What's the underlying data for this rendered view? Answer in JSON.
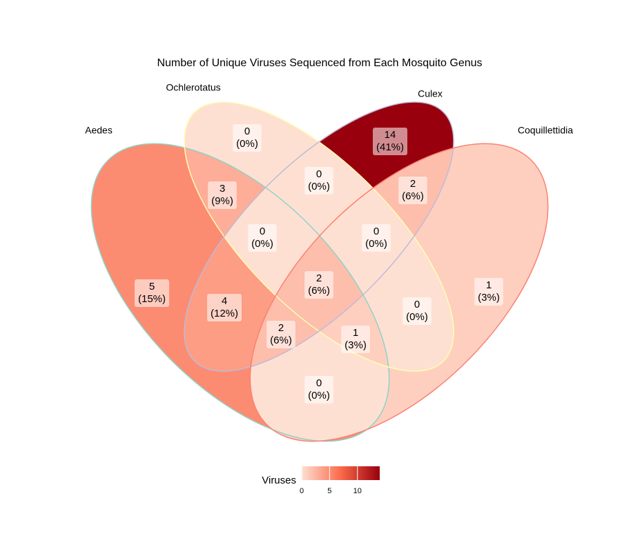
{
  "chart_data": {
    "type": "venn",
    "title": "Number of Unique Viruses Sequenced from Each Mosquito Genus",
    "sets": [
      {
        "name": "Aedes",
        "color": "#8dd3c7"
      },
      {
        "name": "Ochlerotatus",
        "color": "#ffffb3"
      },
      {
        "name": "Culex",
        "color": "#bebada"
      },
      {
        "name": "Coquillettidia",
        "color": "#fb8072"
      }
    ],
    "regions": [
      {
        "sets": [
          "Aedes"
        ],
        "value": 5,
        "percent": {
          "value": 15,
          "label": "(15%)"
        }
      },
      {
        "sets": [
          "Ochlerotatus"
        ],
        "value": 0,
        "percent": {
          "value": 0,
          "label": "(0%)"
        }
      },
      {
        "sets": [
          "Culex"
        ],
        "value": 14,
        "percent": {
          "value": 41,
          "label": "(41%)"
        }
      },
      {
        "sets": [
          "Coquillettidia"
        ],
        "value": 1,
        "percent": {
          "value": 3,
          "label": "(3%)"
        }
      },
      {
        "sets": [
          "Aedes",
          "Ochlerotatus"
        ],
        "value": 3,
        "percent": {
          "value": 9,
          "label": "(9%)"
        }
      },
      {
        "sets": [
          "Ochlerotatus",
          "Culex"
        ],
        "value": 0,
        "percent": {
          "value": 0,
          "label": "(0%)"
        }
      },
      {
        "sets": [
          "Culex",
          "Coquillettidia"
        ],
        "value": 2,
        "percent": {
          "value": 6,
          "label": "(6%)"
        }
      },
      {
        "sets": [
          "Aedes",
          "Ochlerotatus",
          "Culex"
        ],
        "value": 0,
        "percent": {
          "value": 0,
          "label": "(0%)"
        }
      },
      {
        "sets": [
          "Ochlerotatus",
          "Culex",
          "Coquillettidia"
        ],
        "value": 0,
        "percent": {
          "value": 0,
          "label": "(0%)"
        }
      },
      {
        "sets": [
          "Aedes",
          "Ochlerotatus",
          "Culex",
          "Coquillettidia"
        ],
        "value": 2,
        "percent": {
          "value": 6,
          "label": "(6%)"
        }
      },
      {
        "sets": [
          "Aedes",
          "Culex"
        ],
        "value": 4,
        "percent": {
          "value": 12,
          "label": "(12%)"
        }
      },
      {
        "sets": [
          "Ochlerotatus",
          "Coquillettidia"
        ],
        "value": 0,
        "percent": {
          "value": 0,
          "label": "(0%)"
        }
      },
      {
        "sets": [
          "Aedes",
          "Culex",
          "Coquillettidia"
        ],
        "value": 2,
        "percent": {
          "value": 6,
          "label": "(6%)"
        }
      },
      {
        "sets": [
          "Aedes",
          "Ochlerotatus",
          "Coquillettidia"
        ],
        "value": 1,
        "percent": {
          "value": 3,
          "label": "(3%)"
        }
      },
      {
        "sets": [
          "Aedes",
          "Coquillettidia"
        ],
        "value": 0,
        "percent": {
          "value": 0,
          "label": "(0%)"
        }
      }
    ],
    "fill_scale": {
      "title": "Viruses",
      "colors": [
        "#fee0d2",
        "#fb6a4a",
        "#99000d"
      ],
      "lim": [
        0,
        14
      ],
      "ticks": [
        0,
        5,
        10
      ]
    }
  }
}
